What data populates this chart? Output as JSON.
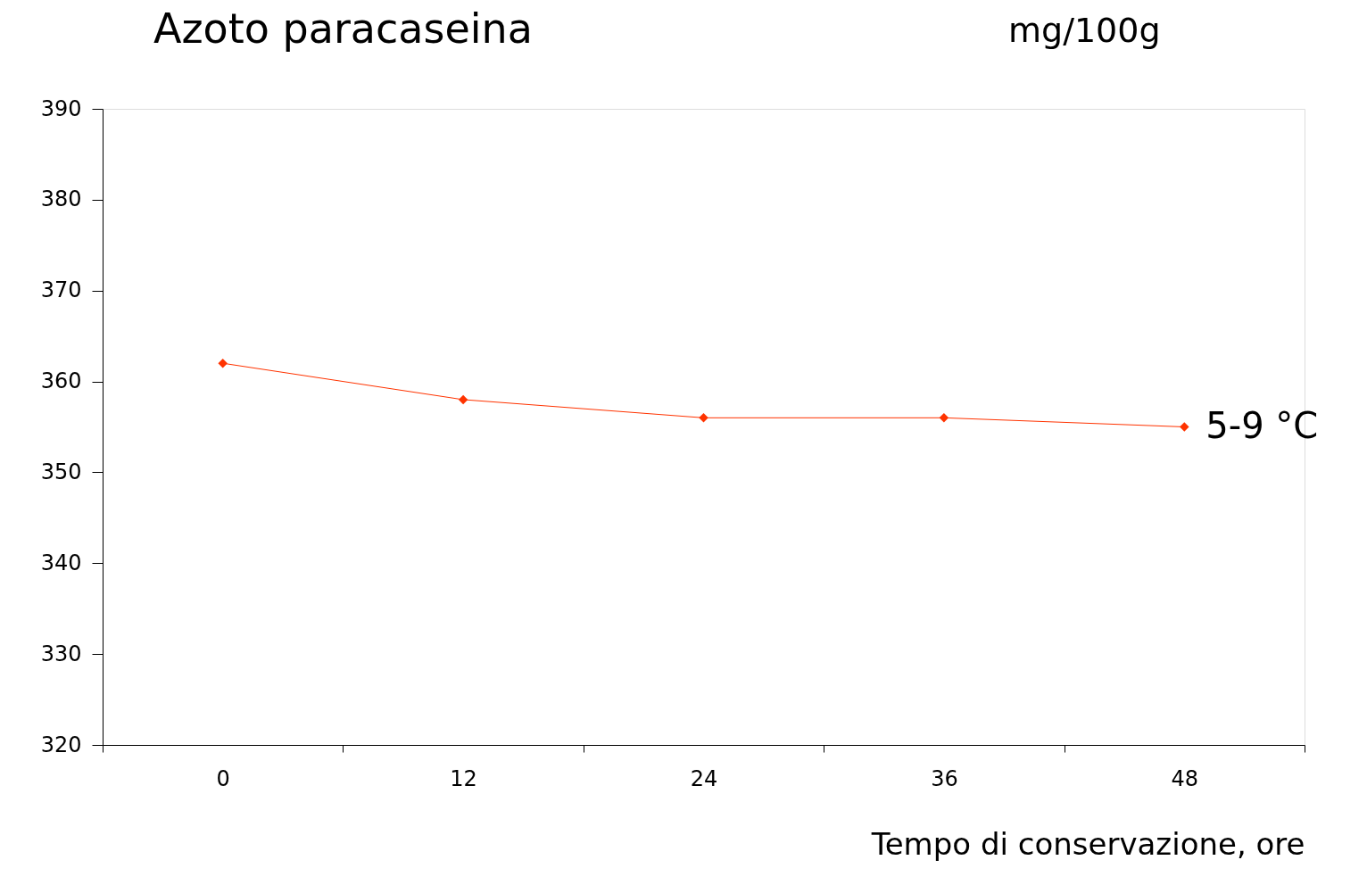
{
  "chart_data": {
    "type": "line",
    "title": "Azoto paracaseina",
    "ylabel": "mg/100g",
    "xlabel": "Tempo di conservazione, ore",
    "categories": [
      "0",
      "12",
      "24",
      "36",
      "48"
    ],
    "series": [
      {
        "name": "5-9 °C",
        "color": "#ff3300",
        "values": [
          362,
          358,
          356,
          356,
          355
        ]
      }
    ],
    "ylim": [
      320,
      390
    ],
    "yticks": [
      320,
      330,
      340,
      350,
      360,
      370,
      380,
      390
    ],
    "grid": false,
    "legend": false,
    "marker": "diamond",
    "line_style": "solid"
  }
}
